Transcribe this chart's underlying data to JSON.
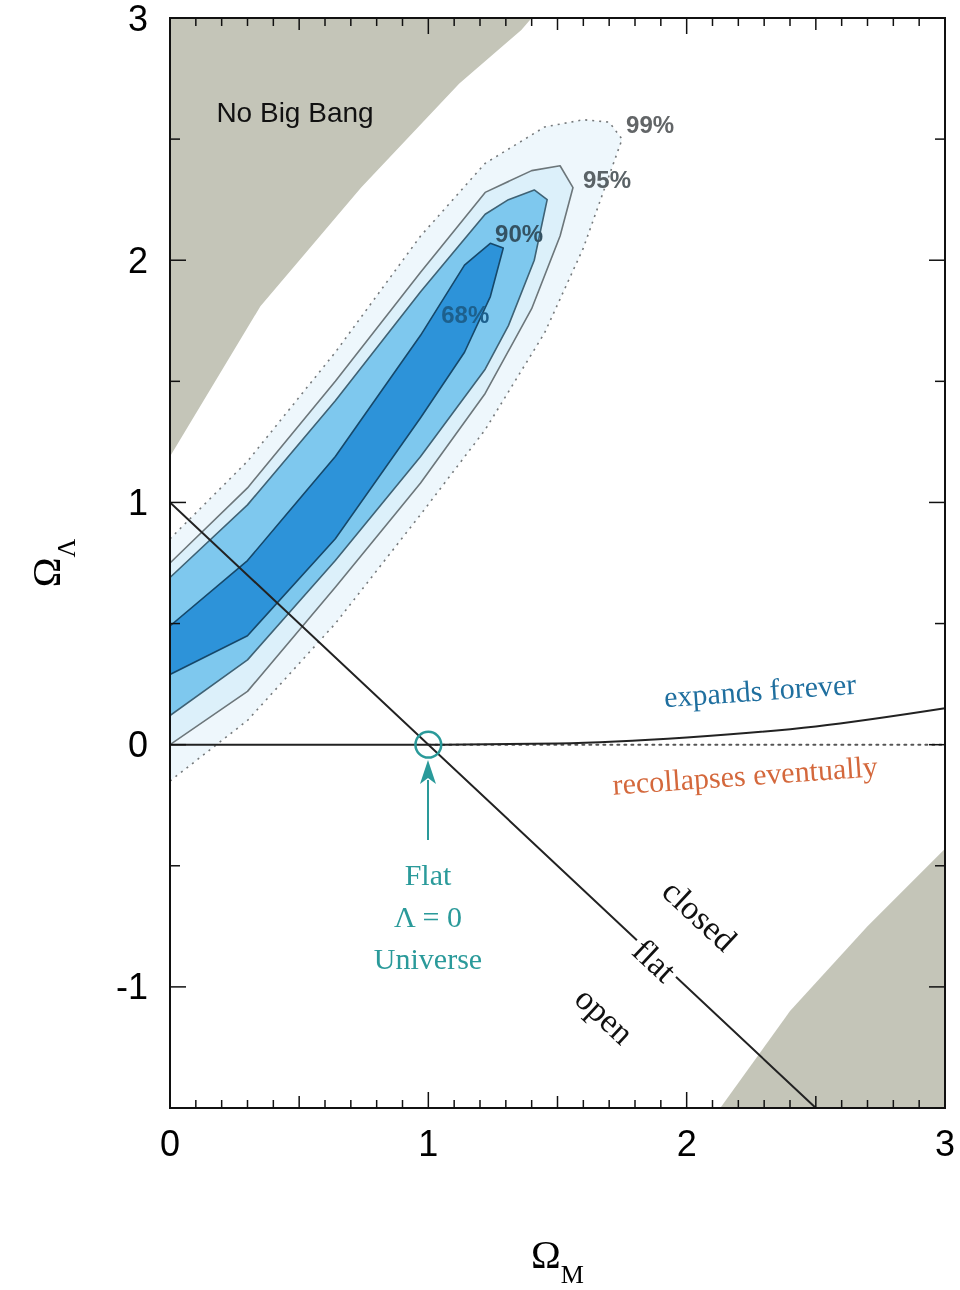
{
  "chart_data": {
    "type": "line",
    "xlabel": "Ω$_{M}$",
    "ylabel": "Ω$_{Λ}$",
    "xlim": [
      0,
      3
    ],
    "ylim": [
      -1.5,
      3
    ],
    "xticks": [
      0,
      {
        "value": 0.1,
        "label": null
      },
      {
        "value": 0.2,
        "label": null
      },
      {
        "value": 0.3,
        "label": null
      },
      {
        "value": 0.4,
        "label": null
      },
      {
        "value": 0.5,
        "label": null
      },
      {
        "value": 0.6,
        "label": null
      },
      {
        "value": 0.7,
        "label": null
      },
      {
        "value": 0.8,
        "label": null
      },
      {
        "value": 0.9,
        "label": null
      },
      1,
      {
        "value": 1.1,
        "label": null
      },
      {
        "value": 1.2,
        "label": null
      },
      {
        "value": 1.3,
        "label": null
      },
      {
        "value": 1.4,
        "label": null
      },
      {
        "value": 1.5,
        "label": null
      },
      {
        "value": 1.6,
        "label": null
      },
      {
        "value": 1.7,
        "label": null
      },
      {
        "value": 1.8,
        "label": null
      },
      {
        "value": 1.9,
        "label": null
      },
      2,
      {
        "value": 2.1,
        "label": null
      },
      {
        "value": 2.2,
        "label": null
      },
      {
        "value": 2.3,
        "label": null
      },
      {
        "value": 2.4,
        "label": null
      },
      {
        "value": 2.5,
        "label": null
      },
      {
        "value": 2.6,
        "label": null
      },
      {
        "value": 2.7,
        "label": null
      },
      {
        "value": 2.8,
        "label": null
      },
      {
        "value": 2.9,
        "label": null
      },
      3
    ],
    "yticks": [
      {
        "value": -1.5,
        "label": null
      },
      -1,
      {
        "value": -0.5,
        "label": null
      },
      0,
      {
        "value": 0.5,
        "label": null
      },
      1,
      {
        "value": 1.5,
        "label": null
      },
      2,
      {
        "value": 2.5,
        "label": null
      },
      3
    ],
    "series": [
      {
        "type": "area",
        "color": "#c4c5b8",
        "x": [
          0,
          0.35,
          0.74,
          1.12,
          1.36,
          1.4,
          0
        ],
        "values": [
          1.19,
          1.81,
          2.3,
          2.73,
          2.95,
          3,
          3
        ]
      },
      {
        "type": "area",
        "color": "#c4c5b8",
        "x": [
          2.13,
          2.4,
          2.7,
          3,
          3
        ],
        "values": [
          -1.5,
          -1.1,
          -0.75,
          -0.43,
          -1.5
        ]
      },
      {
        "type": "area",
        "name": "99%",
        "color": "#eef7fc",
        "line_style": "dotted",
        "x": [
          0,
          0.3,
          0.64,
          0.97,
          1.22,
          1.45,
          1.6,
          1.7,
          1.75,
          1.7,
          1.6,
          1.45,
          1.22,
          0.97,
          0.64,
          0.3,
          0
        ],
        "values": [
          -0.15,
          0.1,
          0.5,
          0.95,
          1.3,
          1.7,
          2.05,
          2.35,
          2.5,
          2.57,
          2.58,
          2.55,
          2.4,
          2.1,
          1.62,
          1.17,
          0.85
        ]
      },
      {
        "type": "area",
        "name": "95%",
        "color": "#dcf0fa",
        "line_style": "solid",
        "x": [
          0,
          0.3,
          0.64,
          0.97,
          1.22,
          1.4,
          1.51,
          1.56,
          1.51,
          1.4,
          1.22,
          0.97,
          0.64,
          0.3,
          0
        ],
        "values": [
          0,
          0.22,
          0.65,
          1.08,
          1.45,
          1.8,
          2.1,
          2.3,
          2.39,
          2.37,
          2.28,
          1.95,
          1.5,
          1.06,
          0.75
        ]
      },
      {
        "type": "area",
        "name": "90%",
        "color": "#7ec8ee",
        "line_style": "solid",
        "x": [
          0,
          0.3,
          0.64,
          0.97,
          1.22,
          1.31,
          1.41,
          1.46,
          1.41,
          1.31,
          1.22,
          0.97,
          0.64,
          0.3,
          0
        ],
        "values": [
          0.12,
          0.35,
          0.76,
          1.19,
          1.55,
          1.73,
          2.0,
          2.25,
          2.29,
          2.25,
          2.19,
          1.87,
          1.42,
          0.99,
          0.69
        ]
      },
      {
        "type": "area",
        "name": "68%",
        "color": "#2d93d9",
        "line_style": "solid",
        "x": [
          0,
          0.3,
          0.64,
          0.97,
          1.14,
          1.24,
          1.29,
          1.24,
          1.14,
          0.97,
          0.64,
          0.3,
          0
        ],
        "values": [
          0.29,
          0.45,
          0.85,
          1.35,
          1.62,
          1.85,
          2.05,
          2.07,
          1.98,
          1.69,
          1.19,
          0.76,
          0.49
        ]
      },
      {
        "color": "#555555",
        "line_style": "dotted",
        "x": [
          1,
          3
        ],
        "values": [
          0,
          0
        ]
      },
      {
        "color": "#222222",
        "line_style": "solid",
        "x": [
          0,
          1,
          1.5,
          2,
          2.5,
          3
        ],
        "values": [
          0,
          0,
          0.005,
          0.03,
          0.075,
          0.15
        ]
      },
      {
        "color": "#222222",
        "line_style": "solid",
        "x": [
          0,
          2.5
        ],
        "values": [
          1,
          -1.5
        ]
      },
      {
        "type": "scatter",
        "color": "#2a9a9a",
        "marker": "circle",
        "x": [
          1
        ],
        "values": [
          0
        ]
      }
    ],
    "annotations": [
      "No Big Bang",
      "expands forever",
      "recollapses eventually",
      "closed",
      "flat",
      "open",
      "Flat\nΛ = 0\nUniverse"
    ]
  }
}
